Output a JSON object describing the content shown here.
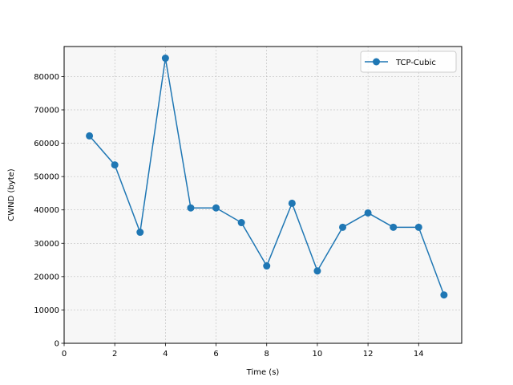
{
  "chart_data": {
    "type": "line",
    "xlabel": "Time (s)",
    "ylabel": "CWND (byte)",
    "xlim": [
      0,
      15.7
    ],
    "ylim": [
      0,
      89000
    ],
    "xticks": [
      0,
      2,
      4,
      6,
      8,
      10,
      12,
      14
    ],
    "yticks": [
      0,
      10000,
      20000,
      30000,
      40000,
      50000,
      60000,
      70000,
      80000
    ],
    "grid": true,
    "legend_position": "top-right",
    "series": [
      {
        "name": "TCP-Cubic",
        "color": "#1f77b4",
        "marker": "circle",
        "x": [
          1,
          2,
          3,
          4,
          5,
          6,
          7,
          8,
          9,
          10,
          11,
          12,
          13,
          14,
          15
        ],
        "y": [
          62200,
          53500,
          33300,
          85500,
          40600,
          40600,
          36200,
          23200,
          42000,
          21700,
          34800,
          39100,
          34800,
          34800,
          14500
        ]
      }
    ]
  }
}
